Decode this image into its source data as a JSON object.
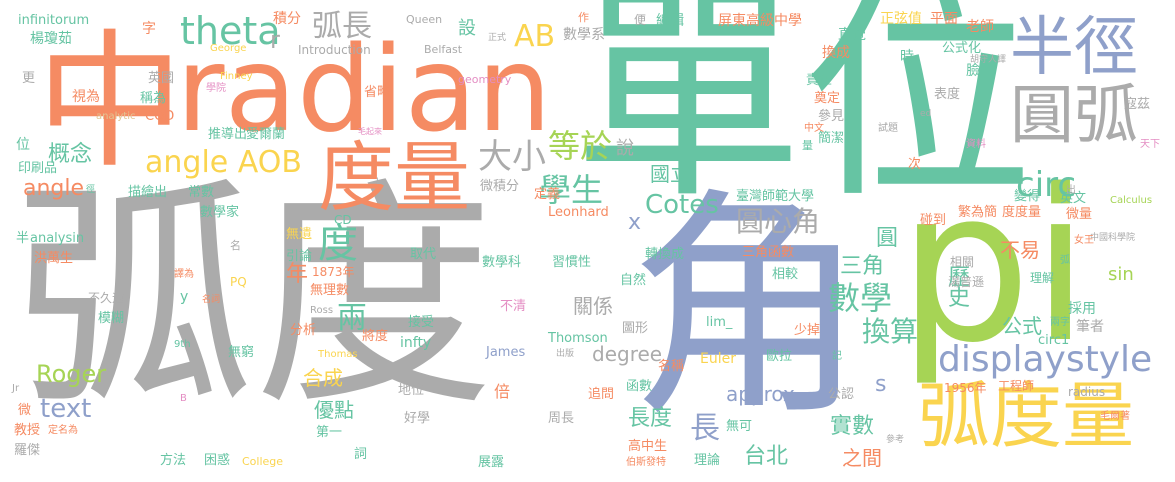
{
  "palette": {
    "gray": "#ababab",
    "orange": "#f58b63",
    "teal": "#66c4a3",
    "blue": "#8fa0ca",
    "green": "#a6d455",
    "yellow": "#fad44f",
    "pink": "#e48ec3",
    "tan": "#e2c593"
  },
  "words": [
    {
      "text": "弧度",
      "color": "gray"
    },
    {
      "text": "單位",
      "color": "teal"
    },
    {
      "text": "角",
      "color": "blue"
    },
    {
      "text": "pi",
      "color": "green"
    },
    {
      "text": "中",
      "color": "orange"
    },
    {
      "text": "radian",
      "color": "orange"
    },
    {
      "text": "半徑",
      "color": "blue"
    },
    {
      "text": "圓弧",
      "color": "gray"
    },
    {
      "text": "度量",
      "color": "orange"
    },
    {
      "text": "弧度量",
      "color": "yellow"
    },
    {
      "text": "theta",
      "color": "teal"
    },
    {
      "text": "displaystyle",
      "color": "blue"
    },
    {
      "text": "angle AOB",
      "color": "yellow"
    },
    {
      "text": "大小",
      "color": "gray"
    },
    {
      "text": "等於",
      "color": "green"
    },
    {
      "text": "學生",
      "color": "teal"
    },
    {
      "text": "數學",
      "color": "teal"
    },
    {
      "text": "circ",
      "color": "teal"
    },
    {
      "text": "弧長",
      "color": "gray"
    },
    {
      "text": "AB",
      "color": "yellow"
    },
    {
      "text": "度",
      "color": "teal"
    },
    {
      "text": "圓心角",
      "color": "gray"
    },
    {
      "text": "Cotes",
      "color": "teal"
    },
    {
      "text": "換算",
      "color": "teal"
    },
    {
      "text": "歷史",
      "color": "teal"
    },
    {
      "text": "長",
      "color": "blue"
    },
    {
      "text": "text",
      "color": "blue"
    },
    {
      "text": "Roger",
      "color": "green"
    },
    {
      "text": "兩",
      "color": "teal"
    },
    {
      "text": "長度",
      "color": "teal"
    },
    {
      "text": "實數",
      "color": "teal"
    },
    {
      "text": "台北",
      "color": "teal"
    },
    {
      "text": "概念",
      "color": "teal"
    },
    {
      "text": "angle",
      "color": "orange"
    },
    {
      "text": "優點",
      "color": "teal"
    },
    {
      "text": "合成",
      "color": "yellow"
    },
    {
      "text": "國立",
      "color": "teal"
    },
    {
      "text": "圓",
      "color": "teal"
    },
    {
      "text": "三角",
      "color": "teal"
    },
    {
      "text": "公式",
      "color": "teal"
    },
    {
      "text": "不易",
      "color": "orange"
    },
    {
      "text": "approx",
      "color": "blue"
    },
    {
      "text": "degree",
      "color": "gray"
    },
    {
      "text": "關係",
      "color": "gray"
    },
    {
      "text": "年",
      "color": "orange"
    },
    {
      "text": "之間",
      "color": "orange"
    },
    {
      "text": "sin",
      "color": "green"
    },
    {
      "text": "s",
      "color": "blue"
    },
    {
      "text": "x",
      "color": "blue"
    },
    {
      "text": "說",
      "color": "gray"
    },
    {
      "text": "設",
      "color": "teal"
    },
    {
      "text": "r",
      "color": "gray"
    },
    {
      "text": "字",
      "color": "orange"
    },
    {
      "text": "積分",
      "color": "orange"
    },
    {
      "text": "數學系",
      "color": "gray"
    },
    {
      "text": "編輯",
      "color": "teal"
    },
    {
      "text": "屏東高級中學",
      "color": "orange"
    },
    {
      "text": "正弦值",
      "color": "yellow"
    },
    {
      "text": "平面",
      "color": "orange"
    },
    {
      "text": "老師",
      "color": "orange"
    },
    {
      "text": "直覺",
      "color": "teal"
    },
    {
      "text": "時",
      "color": "teal"
    },
    {
      "text": "換成",
      "color": "orange"
    },
    {
      "text": "公式化",
      "color": "teal"
    },
    {
      "text": "臉",
      "color": "teal"
    },
    {
      "text": "寇茲",
      "color": "gray"
    },
    {
      "text": "責任",
      "color": "teal"
    },
    {
      "text": "奠定",
      "color": "orange"
    },
    {
      "text": "表度",
      "color": "gray"
    },
    {
      "text": "參見",
      "color": "gray"
    },
    {
      "text": "簡潔",
      "color": "teal"
    },
    {
      "text": "變得",
      "color": "teal"
    },
    {
      "text": "英文",
      "color": "teal"
    },
    {
      "text": "碰到",
      "color": "orange"
    },
    {
      "text": "繁為簡",
      "color": "orange"
    },
    {
      "text": "度度量",
      "color": "orange"
    },
    {
      "text": "微量",
      "color": "orange"
    },
    {
      "text": "相關",
      "color": "gray"
    },
    {
      "text": "理解",
      "color": "teal"
    },
    {
      "text": "湯普遜",
      "color": "gray"
    },
    {
      "text": "採用",
      "color": "teal"
    },
    {
      "text": "筆者",
      "color": "gray"
    },
    {
      "text": "infinitorum",
      "color": "teal"
    },
    {
      "text": "楊瓊茹",
      "color": "teal"
    },
    {
      "text": "英國",
      "color": "gray"
    },
    {
      "text": "稱為",
      "color": "teal"
    },
    {
      "text": "視為",
      "color": "orange"
    },
    {
      "text": "省略",
      "color": "orange"
    },
    {
      "text": "推導出",
      "color": "teal"
    },
    {
      "text": "愛爾蘭",
      "color": "teal"
    },
    {
      "text": "COD",
      "color": "orange"
    },
    {
      "text": "常數",
      "color": "teal"
    },
    {
      "text": "描繪出",
      "color": "teal"
    },
    {
      "text": "數學家",
      "color": "teal"
    },
    {
      "text": "微積分",
      "color": "gray"
    },
    {
      "text": "定義",
      "color": "orange"
    },
    {
      "text": "臺灣師範大學",
      "color": "teal"
    },
    {
      "text": "Leonhard",
      "color": "orange"
    },
    {
      "text": "取代",
      "color": "teal"
    },
    {
      "text": "轉換成",
      "color": "teal"
    },
    {
      "text": "三角函數",
      "color": "orange"
    },
    {
      "text": "相較",
      "color": "teal"
    },
    {
      "text": "數學科",
      "color": "teal"
    },
    {
      "text": "習慣性",
      "color": "teal"
    },
    {
      "text": "自然",
      "color": "teal"
    },
    {
      "text": "無遺",
      "color": "yellow"
    },
    {
      "text": "引論",
      "color": "teal"
    },
    {
      "text": "1873年",
      "color": "orange"
    },
    {
      "text": "無理數",
      "color": "orange"
    },
    {
      "text": "洪萬生",
      "color": "orange"
    },
    {
      "text": "analysin",
      "color": "teal"
    },
    {
      "text": "不久遠",
      "color": "gray"
    },
    {
      "text": "模糊",
      "color": "teal"
    },
    {
      "text": "分析",
      "color": "orange"
    },
    {
      "text": "將度",
      "color": "orange"
    },
    {
      "text": "無窮",
      "color": "teal"
    },
    {
      "text": "接受",
      "color": "teal"
    },
    {
      "text": "不清",
      "color": "pink"
    },
    {
      "text": "圖形",
      "color": "gray"
    },
    {
      "text": "lim_",
      "color": "teal"
    },
    {
      "text": "少掉",
      "color": "orange"
    },
    {
      "text": "circ1",
      "color": "teal"
    },
    {
      "text": "infty",
      "color": "teal"
    },
    {
      "text": "James",
      "color": "blue"
    },
    {
      "text": "Thomson",
      "color": "teal"
    },
    {
      "text": "名稱",
      "color": "orange"
    },
    {
      "text": "Euler",
      "color": "yellow"
    },
    {
      "text": "歐拉",
      "color": "teal"
    },
    {
      "text": "公認",
      "color": "gray"
    },
    {
      "text": "工程師",
      "color": "orange"
    },
    {
      "text": "1956年",
      "color": "orange"
    },
    {
      "text": "radius",
      "color": "gray"
    },
    {
      "text": "地位",
      "color": "gray"
    },
    {
      "text": "追問",
      "color": "orange"
    },
    {
      "text": "函數",
      "color": "teal"
    },
    {
      "text": "倍",
      "color": "orange"
    },
    {
      "text": "周長",
      "color": "gray"
    },
    {
      "text": "無可",
      "color": "teal"
    },
    {
      "text": "好學",
      "color": "gray"
    },
    {
      "text": "第一",
      "color": "teal"
    },
    {
      "text": "高中生",
      "color": "orange"
    },
    {
      "text": "理論",
      "color": "teal"
    },
    {
      "text": "展露",
      "color": "teal"
    },
    {
      "text": "方法",
      "color": "teal"
    },
    {
      "text": "困惑",
      "color": "teal"
    },
    {
      "text": "College",
      "color": "yellow"
    },
    {
      "text": "教授",
      "color": "orange"
    },
    {
      "text": "羅傑",
      "color": "gray"
    },
    {
      "text": "位",
      "color": "teal"
    },
    {
      "text": "印刷品",
      "color": "teal"
    },
    {
      "text": "更",
      "color": "gray"
    },
    {
      "text": "半",
      "color": "teal"
    },
    {
      "text": "微",
      "color": "orange"
    },
    {
      "text": "Introduction",
      "color": "gray"
    },
    {
      "text": "Queen",
      "color": "gray"
    },
    {
      "text": "Belfast",
      "color": "gray"
    },
    {
      "text": "George",
      "color": "yellow"
    },
    {
      "text": "Finney",
      "color": "yellow"
    },
    {
      "text": "geometry",
      "color": "pink"
    },
    {
      "text": "作",
      "color": "orange"
    },
    {
      "text": "便",
      "color": "gray"
    },
    {
      "text": "正式",
      "color": "gray"
    },
    {
      "text": "學院",
      "color": "pink"
    },
    {
      "text": "analytic",
      "color": "tan"
    },
    {
      "text": "毛起來",
      "color": "pink"
    },
    {
      "text": "胡守人譯",
      "color": "gray"
    },
    {
      "text": "中文",
      "color": "orange"
    },
    {
      "text": "試題",
      "color": "gray"
    },
    {
      "text": "資料",
      "color": "pink"
    },
    {
      "text": "天下",
      "color": "pink"
    },
    {
      "text": "Calculus",
      "color": "green"
    },
    {
      "text": "中國科學院",
      "color": "gray"
    },
    {
      "text": "女王",
      "color": "orange"
    },
    {
      "text": "兩字",
      "color": "teal"
    },
    {
      "text": "毛爾著",
      "color": "orange"
    },
    {
      "text": "參考",
      "color": "gray"
    },
    {
      "text": "伯斯發特",
      "color": "orange"
    },
    {
      "text": "定名為",
      "color": "orange"
    },
    {
      "text": "詞",
      "color": "teal"
    },
    {
      "text": "CD",
      "color": "teal"
    },
    {
      "text": "譯為",
      "color": "orange"
    },
    {
      "text": "名詞",
      "color": "orange"
    },
    {
      "text": "PQ",
      "color": "yellow"
    },
    {
      "text": "y",
      "color": "teal"
    },
    {
      "text": "Ross",
      "color": "gray"
    },
    {
      "text": "Thomas",
      "color": "yellow"
    },
    {
      "text": "9th",
      "color": "teal"
    },
    {
      "text": "出版",
      "color": "gray"
    },
    {
      "text": "Jr",
      "color": "gray"
    },
    {
      "text": "B",
      "color": "pink"
    },
    {
      "text": "名",
      "color": "gray"
    },
    {
      "text": "徑",
      "color": "teal"
    },
    {
      "text": "L",
      "color": "gray"
    },
    {
      "text": "ed",
      "color": "gray"
    },
    {
      "text": "記",
      "color": "teal"
    },
    {
      "text": "弧",
      "color": "teal"
    },
    {
      "text": "次",
      "color": "orange"
    },
    {
      "text": "出",
      "color": "gray"
    },
    {
      "text": "量",
      "color": "teal"
    }
  ]
}
